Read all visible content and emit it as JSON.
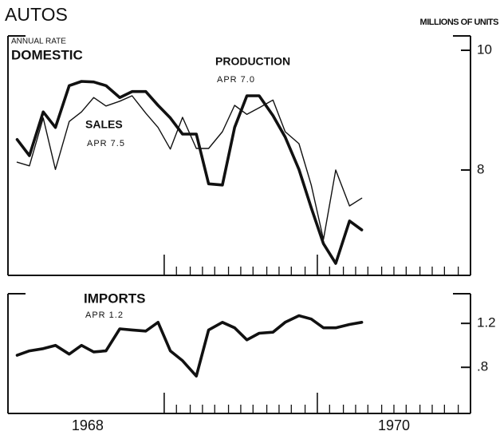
{
  "chart_data": [
    {
      "type": "line",
      "title": "AUTOS",
      "subtitle": [
        "ANNUAL RATE",
        "DOMESTIC"
      ],
      "y_label": "MILLIONS OF UNITS",
      "x": [
        1968.04,
        1968.12,
        1968.21,
        1968.29,
        1968.38,
        1968.46,
        1968.54,
        1968.62,
        1968.71,
        1968.79,
        1968.88,
        1968.96,
        1969.04,
        1969.12,
        1969.21,
        1969.29,
        1969.38,
        1969.46,
        1969.54,
        1969.62,
        1969.71,
        1969.79,
        1969.88,
        1969.96,
        1970.04,
        1970.12,
        1970.21,
        1970.29
      ],
      "xlim": [
        1967.98,
        1971.0
      ],
      "major_xticks": [
        1969,
        1970
      ],
      "minor_xticks": [
        1969.08,
        1969.17,
        1969.25,
        1969.33,
        1969.42,
        1969.5,
        1969.58,
        1969.67,
        1969.75,
        1969.83,
        1969.92,
        1970.08,
        1970.17,
        1970.25,
        1970.33,
        1970.42,
        1970.5,
        1970.58,
        1970.67,
        1970.75,
        1970.83,
        1970.92
      ],
      "ylim": [
        6.24,
        10.24
      ],
      "yticks": [
        8,
        10
      ],
      "series": [
        {
          "name": "PRODUCTION",
          "label": "APR 7.0",
          "color": "#111111",
          "width": 3.6,
          "values": [
            8.51,
            8.24,
            8.97,
            8.71,
            9.41,
            9.48,
            9.47,
            9.41,
            9.21,
            9.31,
            9.31,
            9.08,
            8.87,
            8.6,
            8.6,
            7.77,
            7.75,
            8.71,
            9.24,
            9.24,
            8.91,
            8.55,
            8.01,
            7.37,
            6.77,
            6.44,
            7.15,
            7.0
          ]
        },
        {
          "name": "SALES",
          "label": "APR 7.5",
          "color": "#111111",
          "width": 1.4,
          "values": [
            8.13,
            8.07,
            8.87,
            8.01,
            8.81,
            8.97,
            9.21,
            9.07,
            9.15,
            9.24,
            8.95,
            8.71,
            8.35,
            8.88,
            8.36,
            8.36,
            8.64,
            9.08,
            8.93,
            9.04,
            9.17,
            8.64,
            8.44,
            7.75,
            6.84,
            8.0,
            7.4,
            7.53
          ]
        }
      ]
    },
    {
      "type": "line",
      "x": [
        1968.04,
        1968.12,
        1968.21,
        1968.29,
        1968.38,
        1968.46,
        1968.54,
        1968.62,
        1968.71,
        1968.79,
        1968.88,
        1968.96,
        1969.04,
        1969.12,
        1969.21,
        1969.29,
        1969.38,
        1969.46,
        1969.54,
        1969.62,
        1969.71,
        1969.79,
        1969.88,
        1969.96,
        1970.04,
        1970.12,
        1970.21,
        1970.29
      ],
      "xlim": [
        1967.98,
        1971.0
      ],
      "major_xticks": [
        1969,
        1970
      ],
      "minor_xticks": [
        1969.08,
        1969.17,
        1969.25,
        1969.33,
        1969.42,
        1969.5,
        1969.58,
        1969.67,
        1969.75,
        1969.83,
        1969.92,
        1970.08,
        1970.17,
        1970.25,
        1970.33,
        1970.42,
        1970.5,
        1970.58,
        1970.67,
        1970.75,
        1970.83,
        1970.92
      ],
      "year_labels": [
        {
          "value": 1968.5,
          "label": "1968"
        },
        {
          "value": 1970.5,
          "label": "1970"
        }
      ],
      "ylim": [
        0.38,
        1.47
      ],
      "yticks": [
        {
          "value": 0.8,
          "label": ".8"
        },
        1.2
      ],
      "series": [
        {
          "name": "IMPORTS",
          "label": "APR 1.2",
          "color": "#111111",
          "width": 3.6,
          "values": [
            0.91,
            0.95,
            0.97,
            1.0,
            0.92,
            1.0,
            0.94,
            0.95,
            1.15,
            1.14,
            1.13,
            1.21,
            0.95,
            0.86,
            0.72,
            1.14,
            1.21,
            1.16,
            1.05,
            1.11,
            1.12,
            1.21,
            1.27,
            1.24,
            1.16,
            1.16,
            1.19,
            1.21
          ]
        }
      ]
    }
  ]
}
